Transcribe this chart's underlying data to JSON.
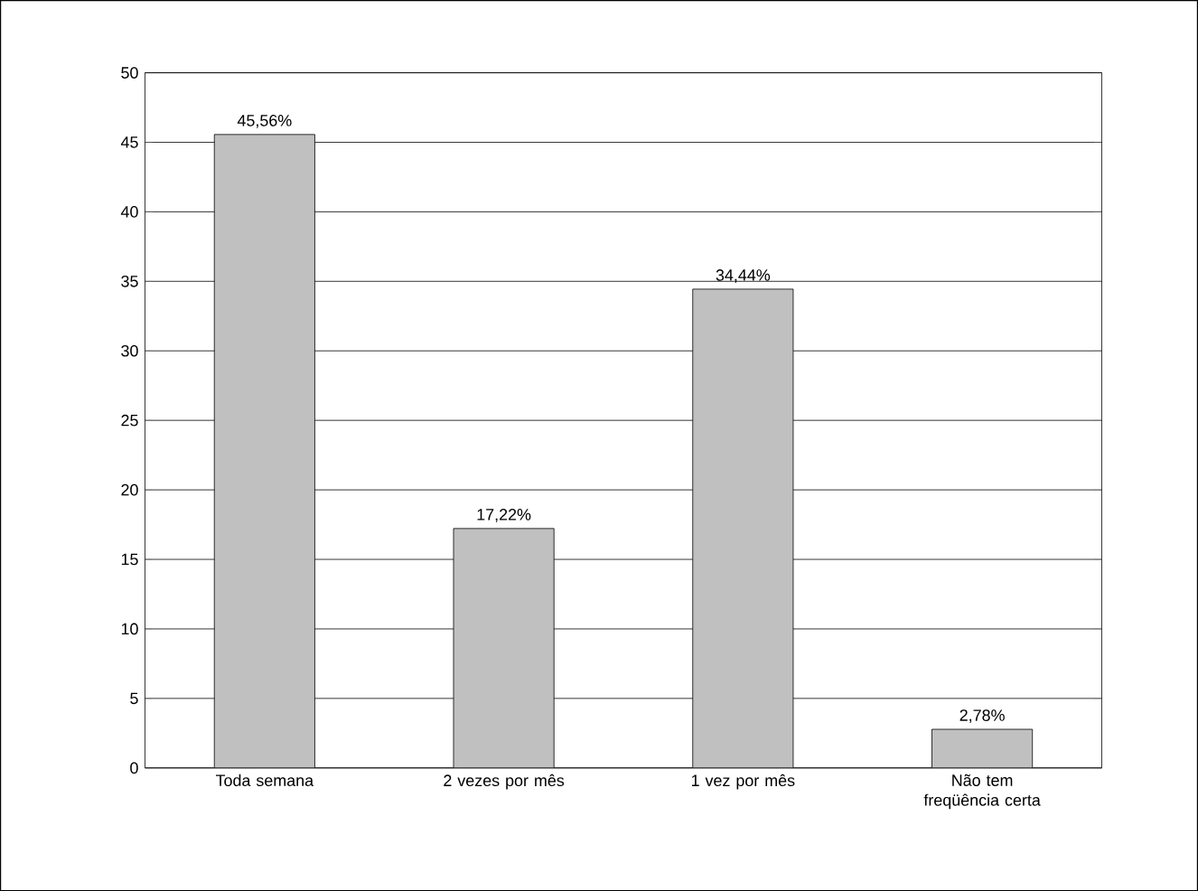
{
  "chart_data": {
    "type": "bar",
    "categories": [
      "Toda semana",
      "2 vezes por mês",
      "1 vez por mês",
      "Não tem freqüência certa"
    ],
    "values": [
      45.56,
      17.22,
      34.44,
      2.78
    ],
    "value_labels": [
      "45,56%",
      "17,22%",
      "34,44%",
      "2,78%"
    ],
    "color": "#c0c0c0",
    "ylim": [
      0,
      50
    ],
    "yticks": [
      0,
      5,
      10,
      15,
      20,
      25,
      30,
      35,
      40,
      45,
      50
    ],
    "grid": "y"
  }
}
